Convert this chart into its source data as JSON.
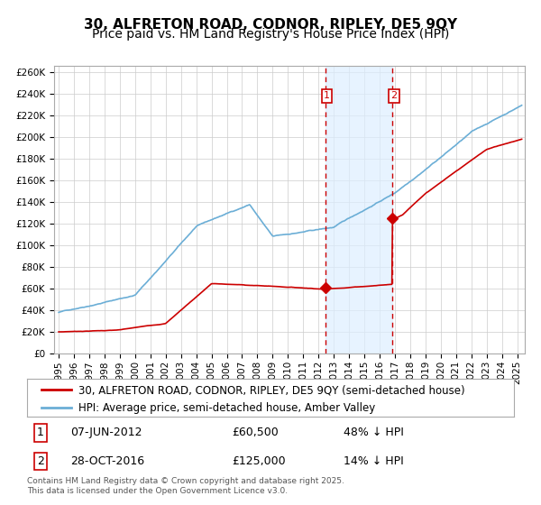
{
  "title": "30, ALFRETON ROAD, CODNOR, RIPLEY, DE5 9QY",
  "subtitle": "Price paid vs. HM Land Registry's House Price Index (HPI)",
  "ylabel": "",
  "ylim": [
    0,
    266000
  ],
  "yticks": [
    0,
    20000,
    40000,
    60000,
    80000,
    100000,
    120000,
    140000,
    160000,
    180000,
    200000,
    220000,
    240000,
    260000
  ],
  "xlim_start": 1995.0,
  "xlim_end": 2025.5,
  "xtick_years": [
    1995,
    1996,
    1997,
    1998,
    1999,
    2000,
    2001,
    2002,
    2003,
    2004,
    2005,
    2006,
    2007,
    2008,
    2009,
    2010,
    2011,
    2012,
    2013,
    2014,
    2015,
    2016,
    2017,
    2018,
    2019,
    2020,
    2021,
    2022,
    2023,
    2024,
    2025
  ],
  "hpi_color": "#6baed6",
  "price_color": "#cc0000",
  "vline_color": "#cc0000",
  "shade_color": "#ddeeff",
  "marker_color": "#cc0000",
  "sale1_date_x": 2012.44,
  "sale1_price": 60500,
  "sale2_date_x": 2016.83,
  "sale2_price": 125000,
  "sale1_label": "1",
  "sale2_label": "2",
  "legend_line1": "30, ALFRETON ROAD, CODNOR, RIPLEY, DE5 9QY (semi-detached house)",
  "legend_line2": "HPI: Average price, semi-detached house, Amber Valley",
  "annotation1": "1    07-JUN-2012         £60,500        48% ↓ HPI",
  "annotation2": "2    28-OCT-2016         £125,000      14% ↓ HPI",
  "footer": "Contains HM Land Registry data © Crown copyright and database right 2025.\nThis data is licensed under the Open Government Licence v3.0.",
  "background_color": "#ffffff",
  "grid_color": "#cccccc",
  "title_fontsize": 11,
  "subtitle_fontsize": 10,
  "tick_fontsize": 7.5,
  "legend_fontsize": 8.5,
  "annotation_fontsize": 9
}
